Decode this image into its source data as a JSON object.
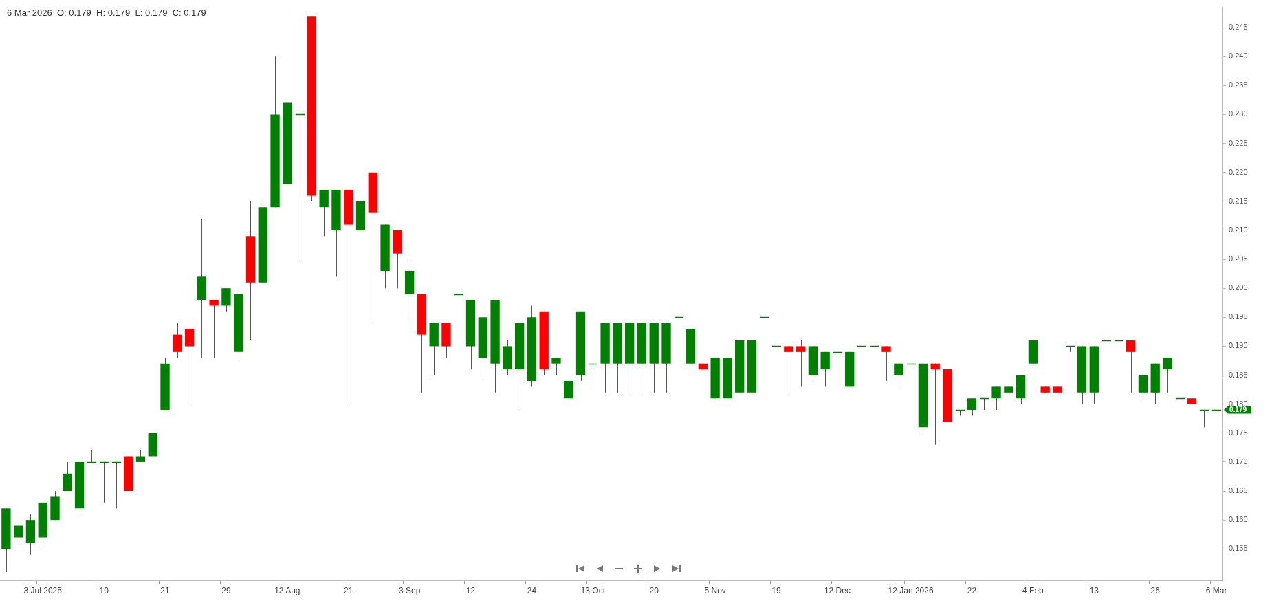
{
  "chart_data": {
    "type": "candlestick",
    "title": "6 Mar 2026  O: 0.179  H: 0.179  L: 0.179  C: 0.179",
    "categories": [
      null,
      null,
      null,
      "3 Jul 2025",
      null,
      null,
      null,
      null,
      "10",
      null,
      null,
      null,
      null,
      "21",
      null,
      null,
      null,
      null,
      "29",
      null,
      null,
      null,
      null,
      "12 Aug",
      null,
      null,
      null,
      null,
      "21",
      null,
      null,
      null,
      null,
      "3 Sep",
      null,
      null,
      null,
      null,
      "12",
      null,
      null,
      null,
      null,
      "24",
      null,
      null,
      null,
      null,
      "13 Oct",
      null,
      null,
      null,
      null,
      "20",
      null,
      null,
      null,
      null,
      "5 Nov",
      null,
      null,
      null,
      null,
      "19",
      null,
      null,
      null,
      null,
      "12 Dec",
      null,
      null,
      null,
      null,
      null,
      "12 Jan 2026",
      null,
      null,
      null,
      null,
      "22",
      null,
      null,
      null,
      null,
      "4 Feb",
      null,
      null,
      null,
      null,
      "13",
      null,
      null,
      null,
      null,
      "26",
      null,
      null,
      null,
      null,
      "6 Mar"
    ],
    "ohlc": [
      [
        0.155,
        0.162,
        0.151,
        0.162
      ],
      [
        0.157,
        0.16,
        0.156,
        0.159
      ],
      [
        0.156,
        0.161,
        0.154,
        0.16
      ],
      [
        0.157,
        0.163,
        0.155,
        0.163
      ],
      [
        0.16,
        0.165,
        0.16,
        0.164
      ],
      [
        0.165,
        0.17,
        0.165,
        0.168
      ],
      [
        0.162,
        0.17,
        0.161,
        0.17
      ],
      [
        0.17,
        0.172,
        0.17,
        0.17
      ],
      [
        0.17,
        0.17,
        0.163,
        0.17
      ],
      [
        0.17,
        0.17,
        0.162,
        0.17
      ],
      [
        0.171,
        0.171,
        0.165,
        0.165
      ],
      [
        0.17,
        0.172,
        0.17,
        0.171
      ],
      [
        0.171,
        0.175,
        0.17,
        0.175
      ],
      [
        0.179,
        0.188,
        0.179,
        0.187
      ],
      [
        0.192,
        0.194,
        0.188,
        0.189
      ],
      [
        0.193,
        0.193,
        0.18,
        0.19
      ],
      [
        0.198,
        0.212,
        0.188,
        0.202
      ],
      [
        0.198,
        0.198,
        0.188,
        0.197
      ],
      [
        0.197,
        0.2,
        0.196,
        0.2
      ],
      [
        0.189,
        0.199,
        0.188,
        0.199
      ],
      [
        0.209,
        0.215,
        0.191,
        0.201
      ],
      [
        0.201,
        0.215,
        0.201,
        0.214
      ],
      [
        0.214,
        0.24,
        0.214,
        0.23
      ],
      [
        0.218,
        0.232,
        0.218,
        0.232
      ],
      [
        0.23,
        0.23,
        0.205,
        0.23
      ],
      [
        0.247,
        0.247,
        0.215,
        0.216
      ],
      [
        0.214,
        0.217,
        0.209,
        0.217
      ],
      [
        0.21,
        0.217,
        0.202,
        0.217
      ],
      [
        0.217,
        0.217,
        0.18,
        0.211
      ],
      [
        0.21,
        0.215,
        0.21,
        0.215
      ],
      [
        0.22,
        0.22,
        0.194,
        0.213
      ],
      [
        0.203,
        0.211,
        0.2,
        0.211
      ],
      [
        0.21,
        0.21,
        0.2,
        0.206
      ],
      [
        0.199,
        0.205,
        0.194,
        0.203
      ],
      [
        0.199,
        0.199,
        0.182,
        0.192
      ],
      [
        0.19,
        0.194,
        0.185,
        0.194
      ],
      [
        0.194,
        0.194,
        0.188,
        0.19
      ],
      [
        0.199,
        0.199,
        0.199,
        0.199
      ],
      [
        0.19,
        0.198,
        0.186,
        0.198
      ],
      [
        0.188,
        0.195,
        0.185,
        0.195
      ],
      [
        0.187,
        0.198,
        0.182,
        0.198
      ],
      [
        0.186,
        0.191,
        0.185,
        0.19
      ],
      [
        0.186,
        0.194,
        0.179,
        0.194
      ],
      [
        0.184,
        0.197,
        0.183,
        0.195
      ],
      [
        0.196,
        0.196,
        0.185,
        0.186
      ],
      [
        0.187,
        0.188,
        0.185,
        0.188
      ],
      [
        0.181,
        0.184,
        0.181,
        0.184
      ],
      [
        0.185,
        0.196,
        0.184,
        0.196
      ],
      [
        0.187,
        0.187,
        0.183,
        0.187
      ],
      [
        0.187,
        0.194,
        0.182,
        0.194
      ],
      [
        0.187,
        0.194,
        0.182,
        0.194
      ],
      [
        0.187,
        0.194,
        0.182,
        0.194
      ],
      [
        0.187,
        0.194,
        0.182,
        0.194
      ],
      [
        0.187,
        0.194,
        0.182,
        0.194
      ],
      [
        0.187,
        0.194,
        0.182,
        0.194
      ],
      [
        0.195,
        0.195,
        0.195,
        0.195
      ],
      [
        0.187,
        0.193,
        0.187,
        0.193
      ],
      [
        0.187,
        0.187,
        0.186,
        0.186
      ],
      [
        0.181,
        0.188,
        0.181,
        0.188
      ],
      [
        0.181,
        0.188,
        0.181,
        0.188
      ],
      [
        0.182,
        0.191,
        0.182,
        0.191
      ],
      [
        0.182,
        0.191,
        0.182,
        0.191
      ],
      [
        0.195,
        0.195,
        0.195,
        0.195
      ],
      [
        0.19,
        0.19,
        0.19,
        0.19
      ],
      [
        0.19,
        0.19,
        0.182,
        0.189
      ],
      [
        0.19,
        0.191,
        0.183,
        0.189
      ],
      [
        0.185,
        0.19,
        0.184,
        0.19
      ],
      [
        0.186,
        0.189,
        0.183,
        0.189
      ],
      [
        0.189,
        0.189,
        0.189,
        0.189
      ],
      [
        0.183,
        0.189,
        0.183,
        0.189
      ],
      [
        0.19,
        0.19,
        0.19,
        0.19
      ],
      [
        0.19,
        0.19,
        0.19,
        0.19
      ],
      [
        0.19,
        0.19,
        0.184,
        0.189
      ],
      [
        0.185,
        0.187,
        0.183,
        0.187
      ],
      [
        0.187,
        0.187,
        0.187,
        0.187
      ],
      [
        0.176,
        0.187,
        0.175,
        0.187
      ],
      [
        0.187,
        0.187,
        0.173,
        0.186
      ],
      [
        0.186,
        0.186,
        0.177,
        0.177
      ],
      [
        0.179,
        0.179,
        0.178,
        0.179
      ],
      [
        0.179,
        0.181,
        0.178,
        0.181
      ],
      [
        0.181,
        0.181,
        0.179,
        0.181
      ],
      [
        0.181,
        0.183,
        0.179,
        0.183
      ],
      [
        0.182,
        0.183,
        0.182,
        0.183
      ],
      [
        0.181,
        0.185,
        0.18,
        0.185
      ],
      [
        0.187,
        0.191,
        0.187,
        0.191
      ],
      [
        0.183,
        0.183,
        0.182,
        0.182
      ],
      [
        0.183,
        0.183,
        0.182,
        0.182
      ],
      [
        0.19,
        0.19,
        0.189,
        0.19
      ],
      [
        0.182,
        0.19,
        0.18,
        0.19
      ],
      [
        0.182,
        0.19,
        0.18,
        0.19
      ],
      [
        0.191,
        0.191,
        0.191,
        0.191
      ],
      [
        0.191,
        0.191,
        0.191,
        0.191
      ],
      [
        0.191,
        0.191,
        0.182,
        0.189
      ],
      [
        0.182,
        0.185,
        0.181,
        0.185
      ],
      [
        0.182,
        0.187,
        0.18,
        0.187
      ],
      [
        0.186,
        0.188,
        0.182,
        0.188
      ],
      [
        0.181,
        0.181,
        0.181,
        0.181
      ],
      [
        0.181,
        0.181,
        0.18,
        0.18
      ],
      [
        0.179,
        0.179,
        0.176,
        0.179
      ],
      [
        0.179,
        0.179,
        0.179,
        0.179
      ]
    ],
    "colors": [
      "#008000",
      "#008000",
      "#008000",
      "#008000",
      "#008000",
      "#008000",
      "#008000",
      "#008000",
      "#008000",
      "#008000",
      "#ff0000",
      "#008000",
      "#008000",
      "#008000",
      "#ff0000",
      "#ff0000",
      "#008000",
      "#ff0000",
      "#008000",
      "#008000",
      "#ff0000",
      "#008000",
      "#008000",
      "#008000",
      "#008000",
      "#ff0000",
      "#008000",
      "#008000",
      "#ff0000",
      "#008000",
      "#ff0000",
      "#008000",
      "#ff0000",
      "#008000",
      "#ff0000",
      "#008000",
      "#ff0000",
      "#008000",
      "#008000",
      "#008000",
      "#008000",
      "#008000",
      "#008000",
      "#008000",
      "#ff0000",
      "#008000",
      "#008000",
      "#008000",
      "#008000",
      "#008000",
      "#008000",
      "#008000",
      "#008000",
      "#008000",
      "#008000",
      "#008000",
      "#008000",
      "#ff0000",
      "#008000",
      "#008000",
      "#008000",
      "#008000",
      "#008000",
      "#008000",
      "#ff0000",
      "#ff0000",
      "#008000",
      "#008000",
      "#008000",
      "#008000",
      "#008000",
      "#008000",
      "#ff0000",
      "#008000",
      "#008000",
      "#008000",
      "#ff0000",
      "#ff0000",
      "#008000",
      "#008000",
      "#008000",
      "#008000",
      "#008000",
      "#008000",
      "#008000",
      "#ff0000",
      "#ff0000",
      "#008000",
      "#008000",
      "#008000",
      "#008000",
      "#008000",
      "#ff0000",
      "#008000",
      "#008000",
      "#008000",
      "#008000",
      "#ff0000",
      "#008000",
      "#008000"
    ],
    "ylim": [
      0.1495,
      0.2485
    ],
    "yticks": [
      0.155,
      {
        "value": 0.16,
        "label": "0.160"
      },
      0.165,
      {
        "value": 0.17,
        "label": "0.170"
      },
      0.175,
      {
        "value": 0.18,
        "label": "0.180"
      },
      0.185,
      {
        "value": 0.19,
        "label": "0.190"
      },
      0.195,
      {
        "value": 0.2,
        "label": "0.200"
      },
      0.205,
      {
        "value": 0.21,
        "label": "0.210"
      },
      0.215,
      {
        "value": 0.22,
        "label": "0.220"
      },
      0.225,
      {
        "value": 0.23,
        "label": "0.230"
      },
      0.235,
      {
        "value": 0.24,
        "label": "0.240"
      },
      0.245
    ],
    "annotations": [
      "0.179"
    ],
    "grid": false,
    "legend": false
  }
}
